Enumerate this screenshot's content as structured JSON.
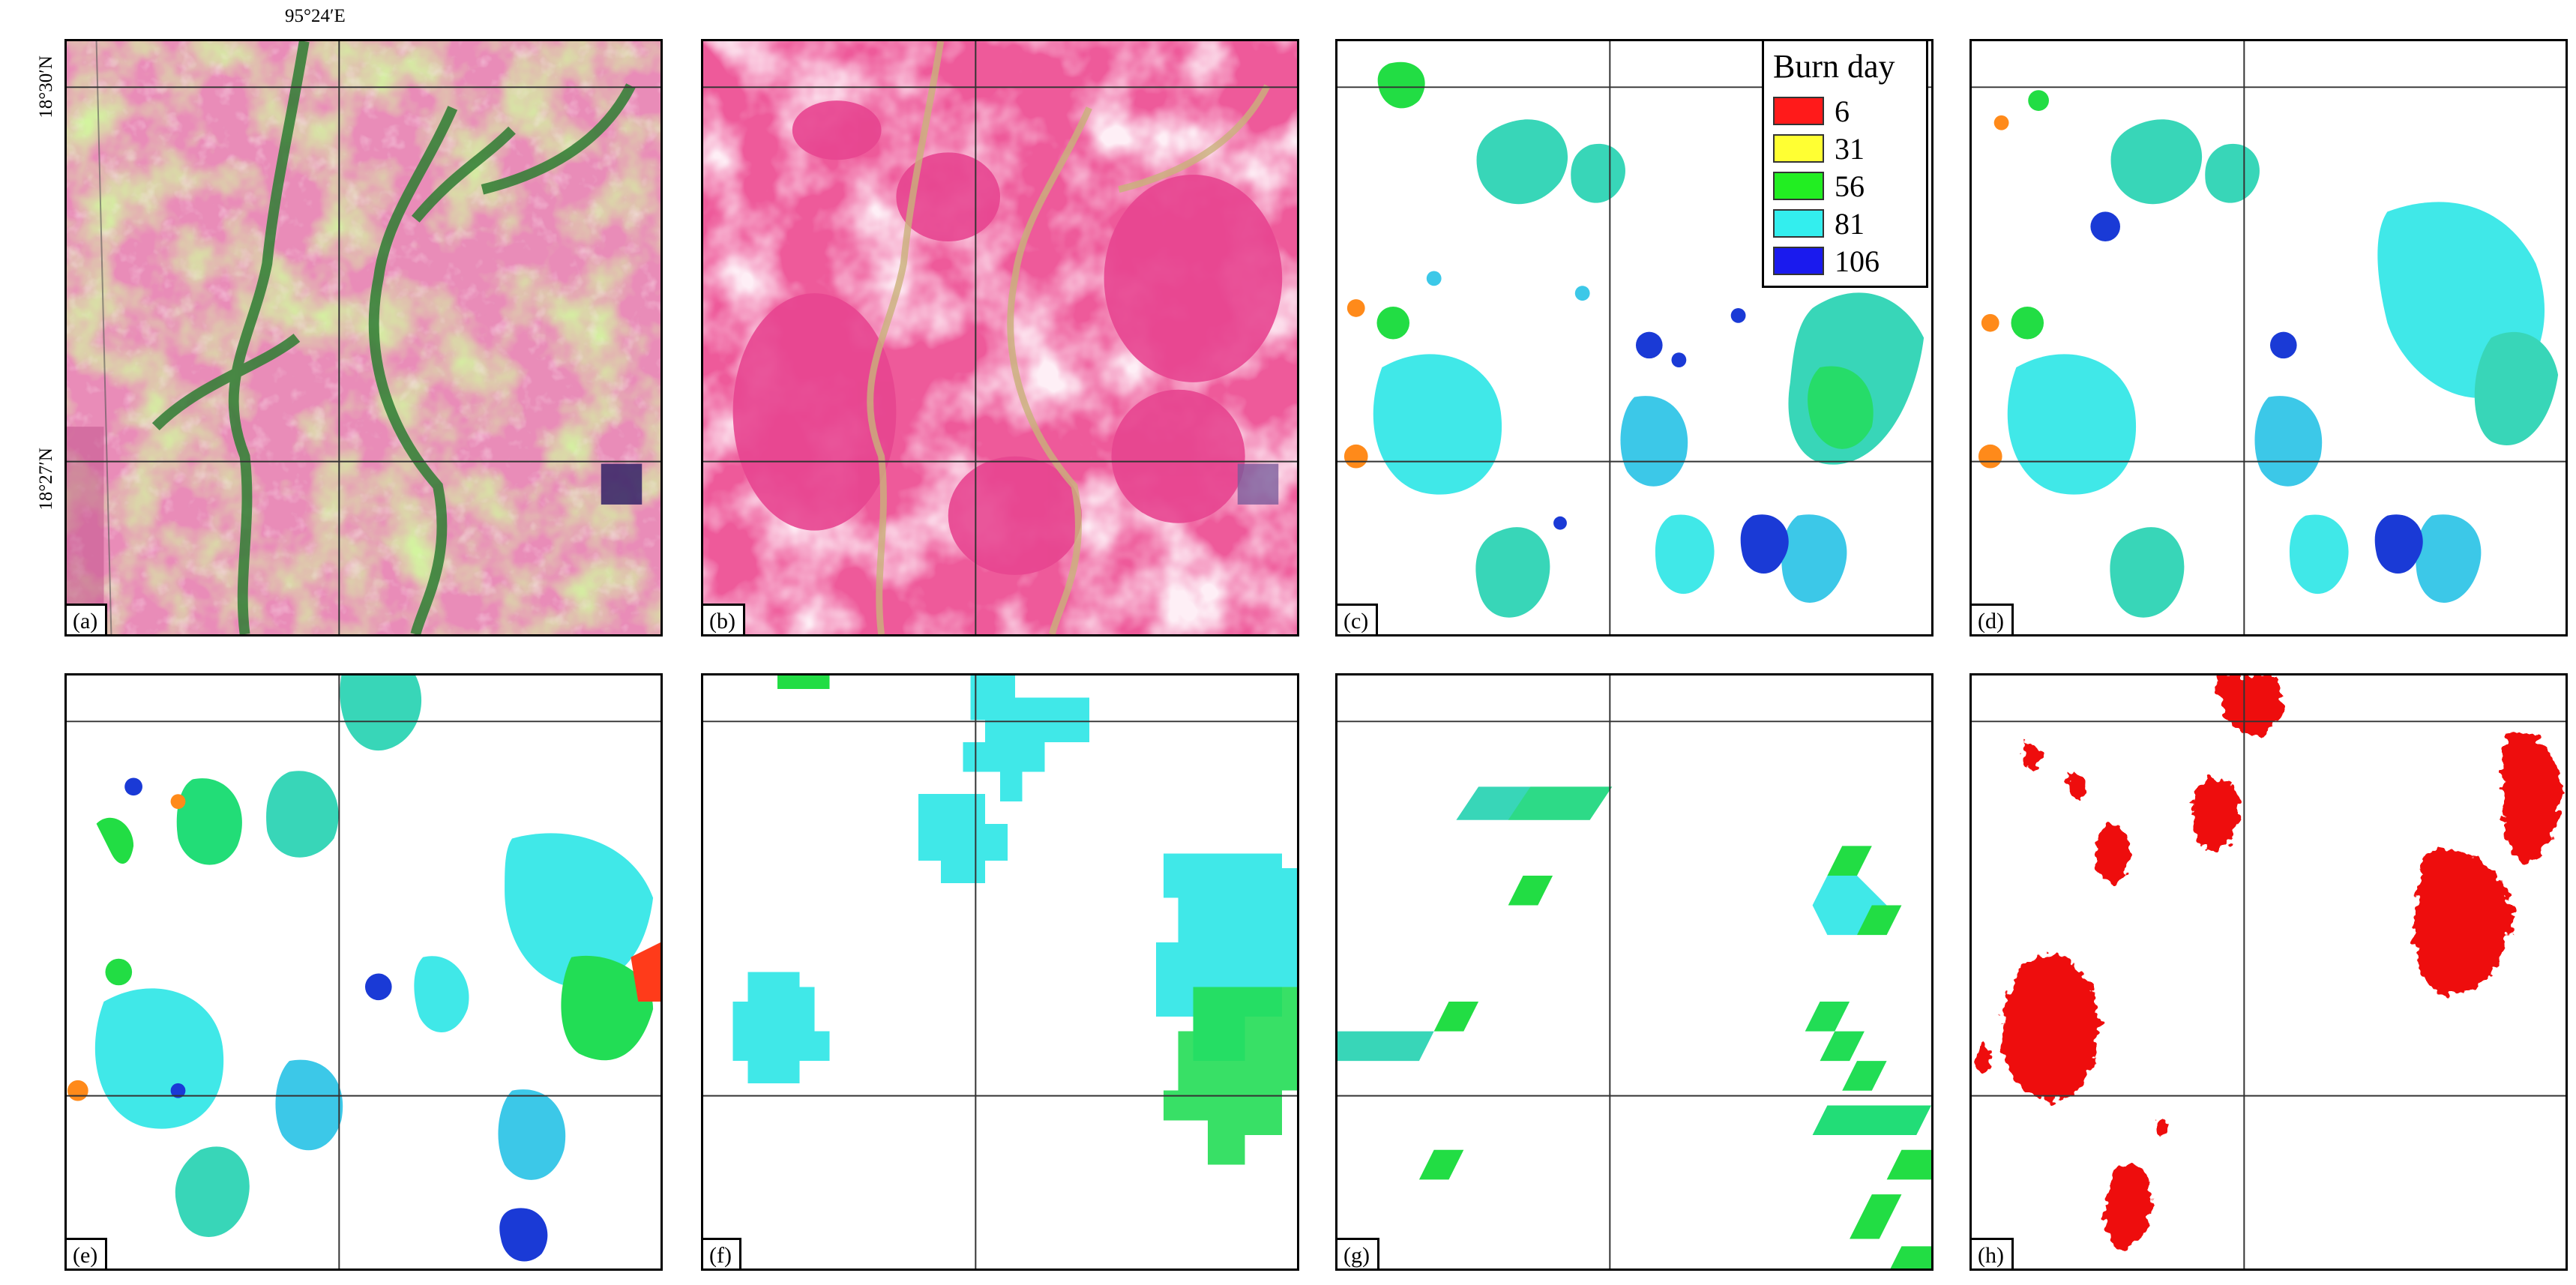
{
  "coordinates": {
    "longitude_label": "95°24′E",
    "latitude_labels": [
      "18°30′N",
      "18°27′N"
    ]
  },
  "panels": [
    {
      "id": "a",
      "label": "(a)",
      "content": "false-color satellite image (green vegetation)"
    },
    {
      "id": "b",
      "label": "(b)",
      "content": "false-color satellite image (pink burned areas)"
    },
    {
      "id": "c",
      "label": "(c)",
      "content": "burned area map colored by burn day"
    },
    {
      "id": "d",
      "label": "(d)",
      "content": "burned area map colored by burn day"
    },
    {
      "id": "e",
      "label": "(e)",
      "content": "burned area map colored by burn day"
    },
    {
      "id": "f",
      "label": "(f)",
      "content": "coarse pixel burned area map"
    },
    {
      "id": "g",
      "label": "(g)",
      "content": "coarse diagonal pixel burned area map"
    },
    {
      "id": "h",
      "label": "(h)",
      "content": "binary burned area map (red)"
    }
  ],
  "legend": {
    "title": "Burn day",
    "items": [
      {
        "label": "6",
        "color": "#ff1a1a"
      },
      {
        "label": "31",
        "color": "#ffff33"
      },
      {
        "label": "56",
        "color": "#22ee22"
      },
      {
        "label": "81",
        "color": "#33eeee"
      },
      {
        "label": "106",
        "color": "#1a1aee"
      }
    ]
  },
  "colors": {
    "burned_binary": "#ee1111",
    "veg_green": "#a6e65a",
    "dark_green": "#2f7a2f",
    "pink": "#f07ab0",
    "light_pink": "#f8c6dc",
    "cyan": "#40e8e8",
    "teal": "#38d6b8",
    "blue": "#1a3ad6",
    "green": "#22dd44",
    "orange": "#ff8a1a"
  }
}
